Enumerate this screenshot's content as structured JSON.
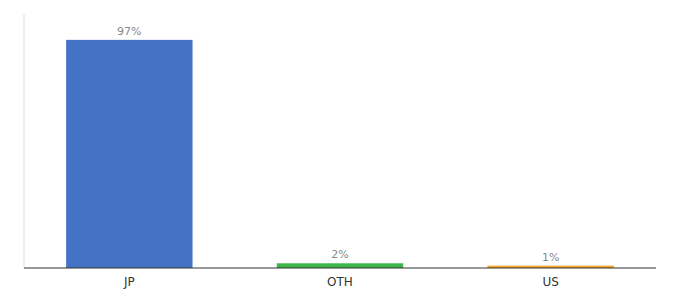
{
  "chart_data": {
    "type": "bar",
    "categories": [
      "JP",
      "OTH",
      "US"
    ],
    "values": [
      97,
      2,
      1
    ],
    "value_labels": [
      "97%",
      "2%",
      "1%"
    ],
    "colors": [
      "#4472c4",
      "#3db54a",
      "#f5a623"
    ],
    "ylim": [
      0,
      108
    ],
    "data_labels": true,
    "tick_labels": "x",
    "grid": false
  }
}
